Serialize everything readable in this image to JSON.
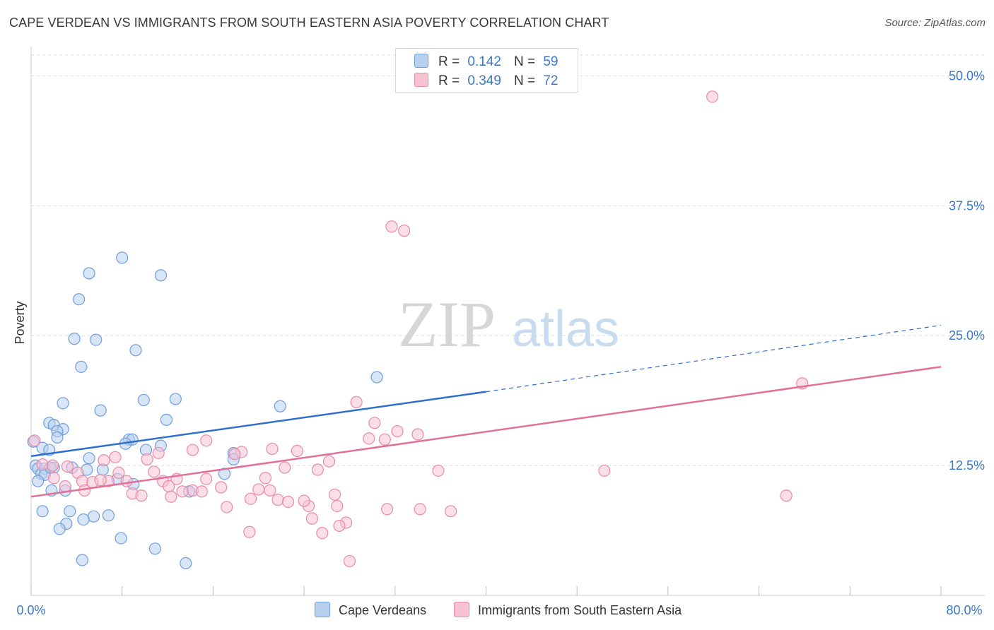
{
  "title": "CAPE VERDEAN VS IMMIGRANTS FROM SOUTH EASTERN ASIA POVERTY CORRELATION CHART",
  "source": "Source: ZipAtlas.com",
  "watermark": {
    "zip": "ZIP",
    "atlas": "atlas"
  },
  "legend": {
    "r_label": "R =",
    "n_label": "N =",
    "series": [
      {
        "r": "0.142",
        "n": "59"
      },
      {
        "r": "0.349",
        "n": "72"
      }
    ]
  },
  "colors": {
    "blue_fill": "#b8d0f0",
    "blue_stroke": "#6e9fdc",
    "blue_line": "#2f6fcc",
    "pink_fill": "#f7c3d3",
    "pink_stroke": "#e88aa8",
    "pink_line": "#e0709a",
    "tick_text": "#3a78c6",
    "grid": "#dddddd"
  },
  "chart_data": {
    "type": "scatter",
    "title": "CAPE VERDEAN VS IMMIGRANTS FROM SOUTH EASTERN ASIA POVERTY CORRELATION CHART",
    "xlabel": "",
    "ylabel": "Poverty",
    "xlim": [
      0,
      80
    ],
    "ylim": [
      0,
      52
    ],
    "x_tick_labels": [
      "0.0%",
      "80.0%"
    ],
    "y_ticks": [
      12.5,
      25.0,
      37.5,
      50.0
    ],
    "y_tick_labels": [
      "12.5%",
      "25.0%",
      "37.5%",
      "50.0%"
    ],
    "legend_position": "top-center",
    "series": [
      {
        "name": "Cape Verdeans",
        "r": 0.142,
        "n": 59,
        "trend": {
          "x0": 0,
          "y0": 13.4,
          "x1": 40,
          "y1": 19.6,
          "dashed_to_x": 80,
          "dashed_to_y": 26.0
        },
        "points": [
          [
            8.0,
            32.5
          ],
          [
            5.1,
            31.0
          ],
          [
            11.4,
            30.8
          ],
          [
            4.2,
            28.5
          ],
          [
            3.8,
            24.7
          ],
          [
            5.7,
            24.6
          ],
          [
            9.2,
            23.6
          ],
          [
            4.4,
            22.0
          ],
          [
            30.4,
            21.0
          ],
          [
            9.9,
            18.8
          ],
          [
            12.7,
            18.9
          ],
          [
            2.8,
            18.5
          ],
          [
            21.9,
            18.2
          ],
          [
            6.1,
            17.8
          ],
          [
            11.9,
            16.9
          ],
          [
            1.6,
            16.6
          ],
          [
            2.0,
            16.4
          ],
          [
            2.8,
            16.0
          ],
          [
            2.3,
            15.8
          ],
          [
            2.3,
            15.2
          ],
          [
            8.6,
            15.0
          ],
          [
            8.9,
            15.0
          ],
          [
            8.3,
            14.6
          ],
          [
            11.4,
            14.4
          ],
          [
            1.0,
            14.2
          ],
          [
            10.1,
            14.0
          ],
          [
            1.6,
            14.0
          ],
          [
            17.8,
            13.7
          ],
          [
            5.1,
            13.2
          ],
          [
            0.4,
            12.5
          ],
          [
            0.6,
            12.2
          ],
          [
            1.2,
            12.2
          ],
          [
            2.0,
            12.3
          ],
          [
            3.6,
            12.3
          ],
          [
            6.3,
            12.1
          ],
          [
            4.9,
            12.1
          ],
          [
            0.9,
            11.7
          ],
          [
            1.2,
            11.6
          ],
          [
            17.0,
            11.7
          ],
          [
            17.8,
            13.1
          ],
          [
            7.6,
            11.2
          ],
          [
            0.6,
            11.0
          ],
          [
            9.0,
            10.7
          ],
          [
            1.8,
            10.1
          ],
          [
            3.0,
            10.1
          ],
          [
            13.9,
            10.0
          ],
          [
            1.0,
            8.1
          ],
          [
            3.4,
            8.1
          ],
          [
            6.8,
            7.7
          ],
          [
            3.1,
            6.9
          ],
          [
            5.5,
            7.6
          ],
          [
            4.6,
            7.3
          ],
          [
            2.5,
            6.4
          ],
          [
            7.9,
            5.5
          ],
          [
            10.9,
            4.5
          ],
          [
            4.5,
            3.4
          ],
          [
            13.6,
            3.1
          ],
          [
            0.2,
            14.8
          ],
          [
            1.7,
            12.3
          ]
        ]
      },
      {
        "name": "Immigrants from South Eastern Asia",
        "r": 0.349,
        "n": 72,
        "trend": {
          "x0": 0,
          "y0": 9.5,
          "x1": 80,
          "y1": 22.0
        },
        "points": [
          [
            59.9,
            48.0
          ],
          [
            31.7,
            35.5
          ],
          [
            32.8,
            35.1
          ],
          [
            67.8,
            20.4
          ],
          [
            28.6,
            18.6
          ],
          [
            30.2,
            16.6
          ],
          [
            32.2,
            15.8
          ],
          [
            34.0,
            15.5
          ],
          [
            29.7,
            15.1
          ],
          [
            31.1,
            15.0
          ],
          [
            15.4,
            14.9
          ],
          [
            0.3,
            14.9
          ],
          [
            23.4,
            13.9
          ],
          [
            14.2,
            14.0
          ],
          [
            21.2,
            14.1
          ],
          [
            18.5,
            13.8
          ],
          [
            11.2,
            13.7
          ],
          [
            7.4,
            13.3
          ],
          [
            6.4,
            13.0
          ],
          [
            10.2,
            13.1
          ],
          [
            26.2,
            12.9
          ],
          [
            1.0,
            12.6
          ],
          [
            3.2,
            12.4
          ],
          [
            22.3,
            12.3
          ],
          [
            1.9,
            12.5
          ],
          [
            25.2,
            12.1
          ],
          [
            35.8,
            12.0
          ],
          [
            50.4,
            12.0
          ],
          [
            10.8,
            11.9
          ],
          [
            4.1,
            11.8
          ],
          [
            7.7,
            11.8
          ],
          [
            12.8,
            11.2
          ],
          [
            15.4,
            11.2
          ],
          [
            20.6,
            11.3
          ],
          [
            11.6,
            11.0
          ],
          [
            4.5,
            11.0
          ],
          [
            8.4,
            11.0
          ],
          [
            6.8,
            11.0
          ],
          [
            5.4,
            10.9
          ],
          [
            3.0,
            10.5
          ],
          [
            12.1,
            10.5
          ],
          [
            16.7,
            10.4
          ],
          [
            4.7,
            10.1
          ],
          [
            14.2,
            10.1
          ],
          [
            20.0,
            10.2
          ],
          [
            21.0,
            10.1
          ],
          [
            13.3,
            10.0
          ],
          [
            15.0,
            10.0
          ],
          [
            8.9,
            9.8
          ],
          [
            9.7,
            9.6
          ],
          [
            12.3,
            9.5
          ],
          [
            19.3,
            9.3
          ],
          [
            21.7,
            9.2
          ],
          [
            22.6,
            9.0
          ],
          [
            66.4,
            9.6
          ],
          [
            17.2,
            8.5
          ],
          [
            24.4,
            8.6
          ],
          [
            26.9,
            8.6
          ],
          [
            31.3,
            8.3
          ],
          [
            34.2,
            8.3
          ],
          [
            36.9,
            8.1
          ],
          [
            24.7,
            7.4
          ],
          [
            27.7,
            7.0
          ],
          [
            27.1,
            6.7
          ],
          [
            19.2,
            6.1
          ],
          [
            25.6,
            6.0
          ],
          [
            28.0,
            3.3
          ],
          [
            24.0,
            9.1
          ],
          [
            26.7,
            9.7
          ],
          [
            17.9,
            13.6
          ],
          [
            2.0,
            11.3
          ],
          [
            6.1,
            11.1
          ]
        ]
      }
    ]
  }
}
